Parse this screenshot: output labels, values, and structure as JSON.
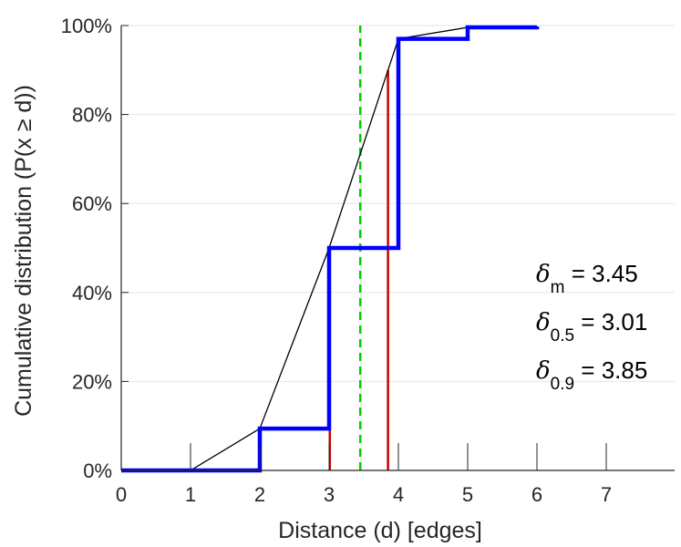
{
  "chart_data": {
    "type": "line",
    "xlabel": "Distance (d) [edges]",
    "ylabel": "Cumulative distribution (P(x ≥ d))",
    "xlim": [
      0,
      8
    ],
    "ylim": [
      0,
      100
    ],
    "x_ticks": [
      "0",
      "1",
      "2",
      "3",
      "4",
      "5",
      "6",
      "7"
    ],
    "y_ticks": [
      "0%",
      "20%",
      "40%",
      "60%",
      "80%",
      "100%"
    ],
    "grid": "horizontal",
    "series": [
      {
        "kind": "step",
        "color": "#0000ff",
        "x": [
          0,
          1,
          2,
          3,
          4,
          5,
          6
        ],
        "y": [
          0,
          0,
          9.4,
          50,
          97,
          99.6,
          99.8
        ]
      },
      {
        "kind": "line",
        "color": "#000000",
        "x": [
          1,
          2,
          3,
          4,
          5,
          6
        ],
        "y": [
          0,
          9.4,
          50,
          97,
          99.6,
          99.8
        ]
      }
    ],
    "vlines": [
      {
        "x": 3.01,
        "y_to": 50,
        "color": "#cc0000",
        "style": "solid"
      },
      {
        "x": 3.85,
        "y_to": 90,
        "color": "#cc0000",
        "style": "solid"
      },
      {
        "x": 3.45,
        "y_to": 100,
        "color": "#00cc00",
        "style": "dashed"
      }
    ],
    "annotations": [
      {
        "symbol": "δ",
        "sub": "m",
        "text": " = 3.45"
      },
      {
        "symbol": "δ",
        "sub": "0.5",
        "text": " = 3.01"
      },
      {
        "symbol": "δ",
        "sub": "0.9",
        "text": " = 3.85"
      }
    ]
  }
}
